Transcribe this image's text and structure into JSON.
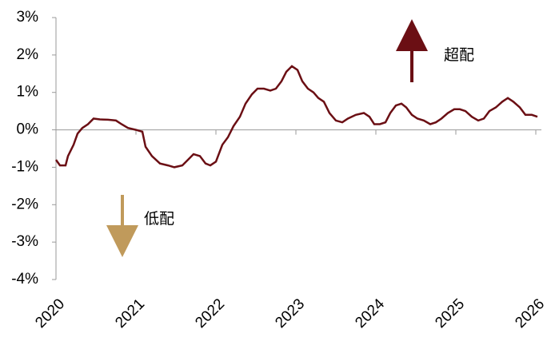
{
  "chart_data": {
    "type": "line",
    "annotations": [
      {
        "text": "超配",
        "color": "#6b0f14"
      },
      {
        "text": "低配",
        "color": "#c09a5b"
      }
    ],
    "x": [
      2020.0,
      2020.05,
      2020.12,
      2020.15,
      2020.22,
      2020.27,
      2020.33,
      2020.4,
      2020.47,
      2020.55,
      2020.65,
      2020.75,
      2020.82,
      2020.9,
      2021.0,
      2021.08,
      2021.12,
      2021.2,
      2021.3,
      2021.4,
      2021.48,
      2021.58,
      2021.65,
      2021.72,
      2021.8,
      2021.87,
      2021.93,
      2022.0,
      2022.08,
      2022.15,
      2022.22,
      2022.3,
      2022.37,
      2022.45,
      2022.52,
      2022.6,
      2022.68,
      2022.75,
      2022.82,
      2022.88,
      2022.95,
      2023.02,
      2023.08,
      2023.15,
      2023.22,
      2023.28,
      2023.35,
      2023.42,
      2023.5,
      2023.58,
      2023.65,
      2023.75,
      2023.85,
      2023.92,
      2023.98,
      2024.05,
      2024.12,
      2024.18,
      2024.25,
      2024.32,
      2024.38,
      2024.45,
      2024.52,
      2024.6,
      2024.68,
      2024.75,
      2024.82,
      2024.9,
      2024.98,
      2025.05,
      2025.12,
      2025.2,
      2025.28,
      2025.35,
      2025.42,
      2025.5,
      2025.58,
      2025.65,
      2025.72,
      2025.8,
      2025.87,
      2025.95,
      2026.02
    ],
    "series": [
      {
        "color": "#6b0f14",
        "values": [
          -0.8,
          -0.95,
          -0.95,
          -0.7,
          -0.4,
          -0.1,
          0.05,
          0.15,
          0.3,
          0.28,
          0.27,
          0.25,
          0.15,
          0.05,
          0.0,
          -0.05,
          -0.45,
          -0.7,
          -0.9,
          -0.95,
          -1.0,
          -0.95,
          -0.8,
          -0.65,
          -0.7,
          -0.9,
          -0.95,
          -0.85,
          -0.4,
          -0.2,
          0.1,
          0.35,
          0.7,
          0.95,
          1.1,
          1.1,
          1.05,
          1.1,
          1.3,
          1.55,
          1.7,
          1.6,
          1.3,
          1.1,
          1.0,
          0.85,
          0.75,
          0.45,
          0.25,
          0.2,
          0.3,
          0.4,
          0.45,
          0.35,
          0.15,
          0.15,
          0.2,
          0.45,
          0.65,
          0.7,
          0.6,
          0.4,
          0.3,
          0.25,
          0.15,
          0.2,
          0.3,
          0.45,
          0.55,
          0.55,
          0.5,
          0.35,
          0.25,
          0.3,
          0.5,
          0.6,
          0.75,
          0.85,
          0.75,
          0.6,
          0.4,
          0.4,
          0.35
        ]
      }
    ],
    "xlim": [
      2020,
      2026.07
    ],
    "xticks": [
      2020,
      2021,
      2022,
      2023,
      2024,
      2025,
      2026
    ],
    "ylim": [
      -4,
      3
    ],
    "yticks": [
      {
        "value": -4,
        "label": "-4%"
      },
      {
        "value": -3,
        "label": "-3%"
      },
      {
        "value": -2,
        "label": "-2%"
      },
      {
        "value": -1,
        "label": "-1%"
      },
      {
        "value": 0,
        "label": "0%"
      },
      {
        "value": 1,
        "label": "1%"
      },
      {
        "value": 2,
        "label": "2%"
      },
      {
        "value": 3,
        "label": "3%"
      }
    ]
  }
}
